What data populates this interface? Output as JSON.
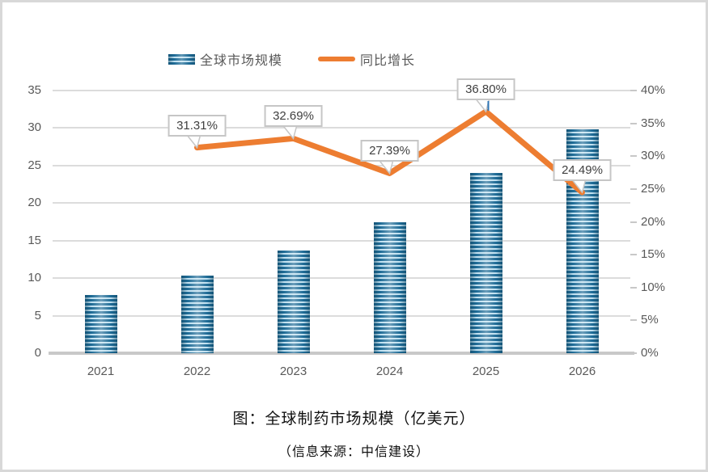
{
  "legend": {
    "bar_label": "全球市场规模",
    "line_label": "同比增长"
  },
  "caption": {
    "title": "图：全球制药市场规模（亿美元）",
    "source": "（信息来源：中信建设）"
  },
  "colors": {
    "bar_stripe_dark": "#1E6B96",
    "bar_stripe_light": "#BFE0F0",
    "line": "#ED7D31",
    "grid": "#DCDCDC",
    "axis_text": "#595959",
    "callout_border": "#C6C6C6",
    "callout_text": "#3F3F3F",
    "leader_blue": "#2E75B6",
    "card_border": "#D8D8D8"
  },
  "chart_data": {
    "type": "bar",
    "subtype": "combo bar + line, dual axis",
    "title": "图：全球制药市场规模（亿美元）",
    "source": "（信息来源：中信建设）",
    "grid": true,
    "legend_position": "top",
    "categories": [
      "2021",
      "2022",
      "2023",
      "2024",
      "2025",
      "2026"
    ],
    "series": [
      {
        "name": "全球市场规模",
        "type": "bar",
        "axis": "left",
        "values": [
          7.8,
          10.3,
          13.7,
          17.5,
          24.0,
          29.8
        ]
      },
      {
        "name": "同比增长",
        "type": "line",
        "axis": "right",
        "values": [
          null,
          31.31,
          32.69,
          27.39,
          36.8,
          24.49
        ],
        "labels": [
          null,
          "31.31%",
          "32.69%",
          "27.39%",
          "36.80%",
          "24.49%"
        ]
      }
    ],
    "left_axis": {
      "ticks": [
        "0",
        "5",
        "10",
        "15",
        "20",
        "25",
        "30",
        "35"
      ],
      "min": 0,
      "max": 35
    },
    "right_axis": {
      "ticks": [
        "0%",
        "5%",
        "10%",
        "15%",
        "20%",
        "25%",
        "30%",
        "35%",
        "40%"
      ],
      "min": 0,
      "max": 40
    }
  }
}
